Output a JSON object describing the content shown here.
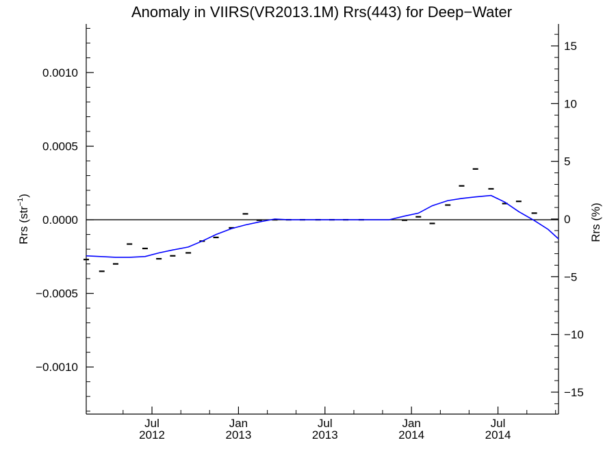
{
  "chart_data": {
    "type": "line",
    "title": "Anomaly in VIIRS(VR2013.1M) Rrs(443) for Deep−Water",
    "ylabel_left": {
      "main": "Rrs (str",
      "sup": "−1",
      "close": ")"
    },
    "ylabel_right": "Rrs (%)",
    "xlabel": "",
    "x_unit": "month (decimal year)",
    "xlim": [
      2012.12,
      2014.85
    ],
    "ylim_left": [
      -0.00132,
      0.00133
    ],
    "ylim_right": [
      -16.9,
      16.9
    ],
    "grid": false,
    "legend": "none",
    "colors": {
      "series": "#0000ff",
      "markers": "#000000",
      "zero_line": "#000000",
      "axes": "#000000"
    },
    "x_ticks": [
      {
        "x": 2012.5,
        "line1": "Jul",
        "line2": "2012"
      },
      {
        "x": 2013.0,
        "line1": "Jan",
        "line2": "2013"
      },
      {
        "x": 2013.5,
        "line1": "Jul",
        "line2": "2013"
      },
      {
        "x": 2014.0,
        "line1": "Jan",
        "line2": "2014"
      },
      {
        "x": 2014.5,
        "line1": "Jul",
        "line2": "2014"
      }
    ],
    "x_minor_ticks": [
      2012.333,
      2012.667,
      2012.833,
      2013.167,
      2013.333,
      2013.667,
      2013.833,
      2014.167,
      2014.333,
      2014.667,
      2014.833
    ],
    "y_left_ticks": [
      {
        "value": 0.001,
        "label": "0.0010"
      },
      {
        "value": 0.0005,
        "label": "0.0005"
      },
      {
        "value": 0.0,
        "label": "0.0000"
      },
      {
        "value": -0.0005,
        "label": "−0.0005"
      },
      {
        "value": -0.001,
        "label": "−0.0010"
      }
    ],
    "y_right_ticks": [
      {
        "value": 15,
        "label": "15"
      },
      {
        "value": 10,
        "label": "10"
      },
      {
        "value": 5,
        "label": "5"
      },
      {
        "value": 0,
        "label": "0"
      },
      {
        "value": -5,
        "label": "−5"
      },
      {
        "value": -10,
        "label": "−10"
      },
      {
        "value": -15,
        "label": "−15"
      }
    ],
    "zero_line": 0.0,
    "series": [
      {
        "style": "line",
        "x": [
          2012.12,
          2012.29,
          2012.37,
          2012.46,
          2012.54,
          2012.62,
          2012.71,
          2012.79,
          2012.87,
          2012.96,
          2013.04,
          2013.12,
          2013.21,
          2013.29,
          2013.37,
          2013.46,
          2013.54,
          2013.62,
          2013.71,
          2013.79,
          2013.87,
          2013.96,
          2014.04,
          2014.12,
          2014.21,
          2014.29,
          2014.37,
          2014.46,
          2014.54,
          2014.62,
          2014.71,
          2014.79,
          2014.85
        ],
        "y": [
          -0.000245,
          -0.000255,
          -0.000255,
          -0.00025,
          -0.000225,
          -0.000205,
          -0.000185,
          -0.000145,
          -0.0001,
          -6e-05,
          -3.5e-05,
          -1.5e-05,
          5e-06,
          0.0,
          0.0,
          0.0,
          0.0,
          0.0,
          0.0,
          0.0,
          0.0,
          2.5e-05,
          4.5e-05,
          9.5e-05,
          0.00013,
          0.000145,
          0.000155,
          0.000165,
          0.00012,
          5.5e-05,
          -5e-06,
          -6.5e-05,
          -0.00013
        ]
      },
      {
        "style": "marker",
        "x": [
          2012.12,
          2012.21,
          2012.29,
          2012.37,
          2012.46,
          2012.54,
          2012.62,
          2012.71,
          2012.79,
          2012.87,
          2012.96,
          2013.04,
          2013.12,
          2013.21,
          2013.29,
          2013.37,
          2013.46,
          2013.54,
          2013.62,
          2013.71,
          2013.96,
          2014.04,
          2014.12,
          2014.21,
          2014.29,
          2014.37,
          2014.46,
          2014.54,
          2014.62,
          2014.71
        ],
        "y": [
          -0.00027,
          -0.00035,
          -0.0003,
          -0.000165,
          -0.000195,
          -0.000265,
          -0.000245,
          -0.000225,
          -0.000145,
          -0.00012,
          -5.5e-05,
          4e-05,
          -3e-06,
          0.0,
          0.0,
          0.0,
          0.0,
          0.0,
          0.0,
          0.0,
          -3e-06,
          2e-05,
          -2.5e-05,
          0.0001,
          0.00023,
          0.000345,
          0.00021,
          0.00011,
          0.000125,
          4.5e-05
        ]
      }
    ]
  }
}
